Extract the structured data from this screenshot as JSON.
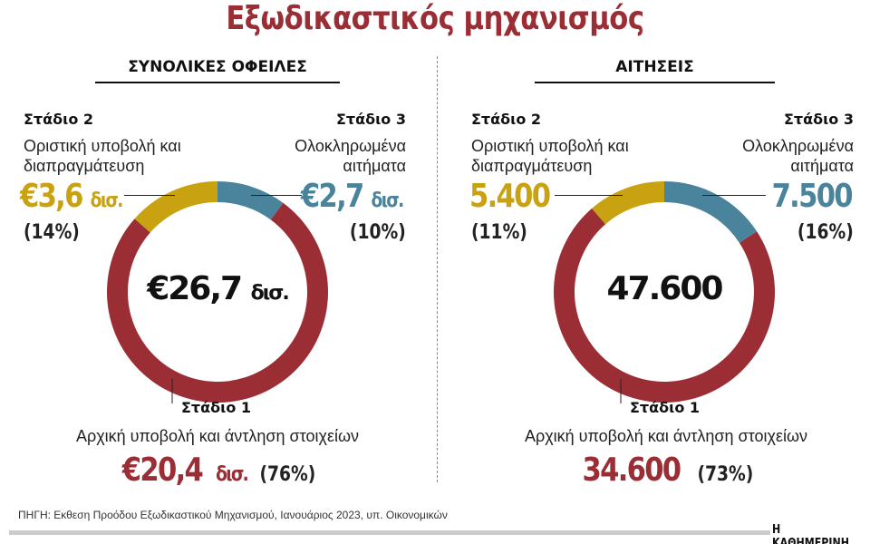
{
  "title": "Εξωδικαστικός μηχανισμός",
  "colors": {
    "stage1": "#9b2d35",
    "stage2": "#c9a211",
    "stage3": "#4a849c"
  },
  "chart_data": [
    {
      "type": "pie",
      "title": "ΣΥΝΟΛΙΚΕΣ ΟΦΕΙΛΕΣ",
      "center_label": "€26,7",
      "center_unit": "δισ.",
      "slices": [
        {
          "label": "Στάδιο 3",
          "desc1": "Ολοκληρωμένα",
          "desc2": "αιτήματα",
          "value_text": "€2,7",
          "unit": "δισ.",
          "value": 2.7,
          "pct": 10,
          "pct_text": "(10%)"
        },
        {
          "label": "Στάδιο 1",
          "desc1": "Αρχική υποβολή και άντληση στοιχείων",
          "value_text": "€20,4",
          "unit": "δισ.",
          "value": 20.4,
          "pct": 76,
          "pct_text": "(76%)"
        },
        {
          "label": "Στάδιο 2",
          "desc1": "Οριστική υποβολή και",
          "desc2": "διαπραγμάτευση",
          "value_text": "€3,6",
          "unit": "δισ.",
          "value": 3.6,
          "pct": 14,
          "pct_text": "(14%)"
        }
      ]
    },
    {
      "type": "pie",
      "title": "ΑΙΤΗΣΕΙΣ",
      "center_label": "47.600",
      "center_unit": "",
      "slices": [
        {
          "label": "Στάδιο 3",
          "desc1": "Ολοκληρωμένα",
          "desc2": "αιτήματα",
          "value_text": "7.500",
          "unit": "",
          "value": 7500,
          "pct": 16,
          "pct_text": "(16%)"
        },
        {
          "label": "Στάδιο 1",
          "desc1": "Αρχική υποβολή και άντληση στοιχείων",
          "value_text": "34.600",
          "unit": "",
          "value": 34600,
          "pct": 73,
          "pct_text": "(73%)"
        },
        {
          "label": "Στάδιο 2",
          "desc1": "Οριστική υποβολή και",
          "desc2": "διαπραγμάτευση",
          "value_text": "5.400",
          "unit": "",
          "value": 5400,
          "pct": 11,
          "pct_text": "(11%)"
        }
      ]
    }
  ],
  "source": "ΠΗΓΗ:  Εκθεση Προόδου Εξωδικαστικού Μηχανισμού, Ιανουάριος 2023, υπ. Οικονομικών",
  "brand": "Η ΚΑΘΗΜΕΡΙΝΗ"
}
